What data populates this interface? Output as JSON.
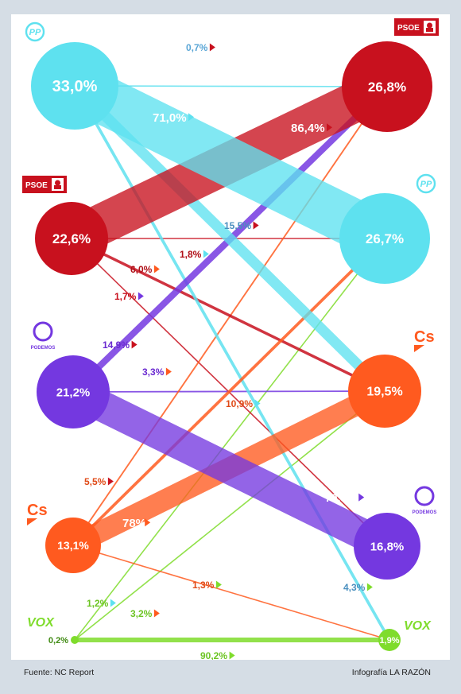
{
  "footer": {
    "source": "Fuente: NC Report",
    "credit": "Infografía LA RAZÓN"
  },
  "colors": {
    "PP": "#5ee1ef",
    "PSOE": "#c8111e",
    "Podemos": "#7438e0",
    "Cs": "#ff5a1f",
    "Vox": "#7fdc2c"
  },
  "parties": [
    {
      "id": "PP",
      "logo_text": "PP",
      "icon": "pp-logo-icon"
    },
    {
      "id": "PSOE",
      "logo_text": "PSOE",
      "icon": "psoe-logo-icon"
    },
    {
      "id": "Podemos",
      "logo_text": "PODEMOS",
      "icon": "podemos-logo-icon"
    },
    {
      "id": "Cs",
      "logo_text": "Cs",
      "icon": "cs-logo-icon"
    },
    {
      "id": "Vox",
      "logo_text": "VOX",
      "icon": "vox-logo-icon"
    }
  ],
  "left_nodes": [
    {
      "party": "PP",
      "label": "33,0%"
    },
    {
      "party": "PSOE",
      "label": "22,6%"
    },
    {
      "party": "Podemos",
      "label": "21,2%"
    },
    {
      "party": "Cs",
      "label": "13,1%"
    },
    {
      "party": "Vox",
      "label": "0,2%"
    }
  ],
  "right_nodes": [
    {
      "party": "PSOE",
      "label": "26,8%"
    },
    {
      "party": "PP",
      "label": "26,7%"
    },
    {
      "party": "Cs",
      "label": "19,5%"
    },
    {
      "party": "Podemos",
      "label": "16,8%"
    },
    {
      "party": "Vox",
      "label": "1,9%"
    }
  ],
  "flows": [
    {
      "from": "PP",
      "to": "PSOE",
      "label": "0,7%",
      "value": 0.7
    },
    {
      "from": "PP",
      "to": "PP",
      "label": "71,0%",
      "value": 71.0
    },
    {
      "from": "PP",
      "to": "Cs",
      "label": "15,5%",
      "value": 15.5
    },
    {
      "from": "PP",
      "to": "Vox",
      "label": "4,3%",
      "value": 4.3
    },
    {
      "from": "PSOE",
      "to": "PSOE",
      "label": "86,4%",
      "value": 86.4
    },
    {
      "from": "PSOE",
      "to": "PP",
      "label": "1,8%",
      "value": 1.8
    },
    {
      "from": "PSOE",
      "to": "Cs",
      "label": "6,0%",
      "value": 6.0
    },
    {
      "from": "PSOE",
      "to": "Podemos",
      "label": "1,7%",
      "value": 1.7
    },
    {
      "from": "Podemos",
      "to": "PSOE",
      "label": "14,9%",
      "value": 14.9
    },
    {
      "from": "Podemos",
      "to": "Cs",
      "label": "3,3%",
      "value": 3.3
    },
    {
      "from": "Podemos",
      "to": "Podemos",
      "label": "70,5%",
      "value": 70.5
    },
    {
      "from": "Cs",
      "to": "PSOE",
      "label": "5,5%",
      "value": 5.5
    },
    {
      "from": "Cs",
      "to": "PP",
      "label": "10,9%",
      "value": 10.9
    },
    {
      "from": "Cs",
      "to": "Cs",
      "label": "78%",
      "value": 78.0
    },
    {
      "from": "Cs",
      "to": "Vox",
      "label": "1,3%",
      "value": 1.3
    },
    {
      "from": "Vox",
      "to": "PP",
      "label": "1,2%",
      "value": 1.2
    },
    {
      "from": "Vox",
      "to": "Cs",
      "label": "3,2%",
      "value": 3.2
    },
    {
      "from": "Vox",
      "to": "Vox",
      "label": "90,2%",
      "value": 90.2
    }
  ]
}
